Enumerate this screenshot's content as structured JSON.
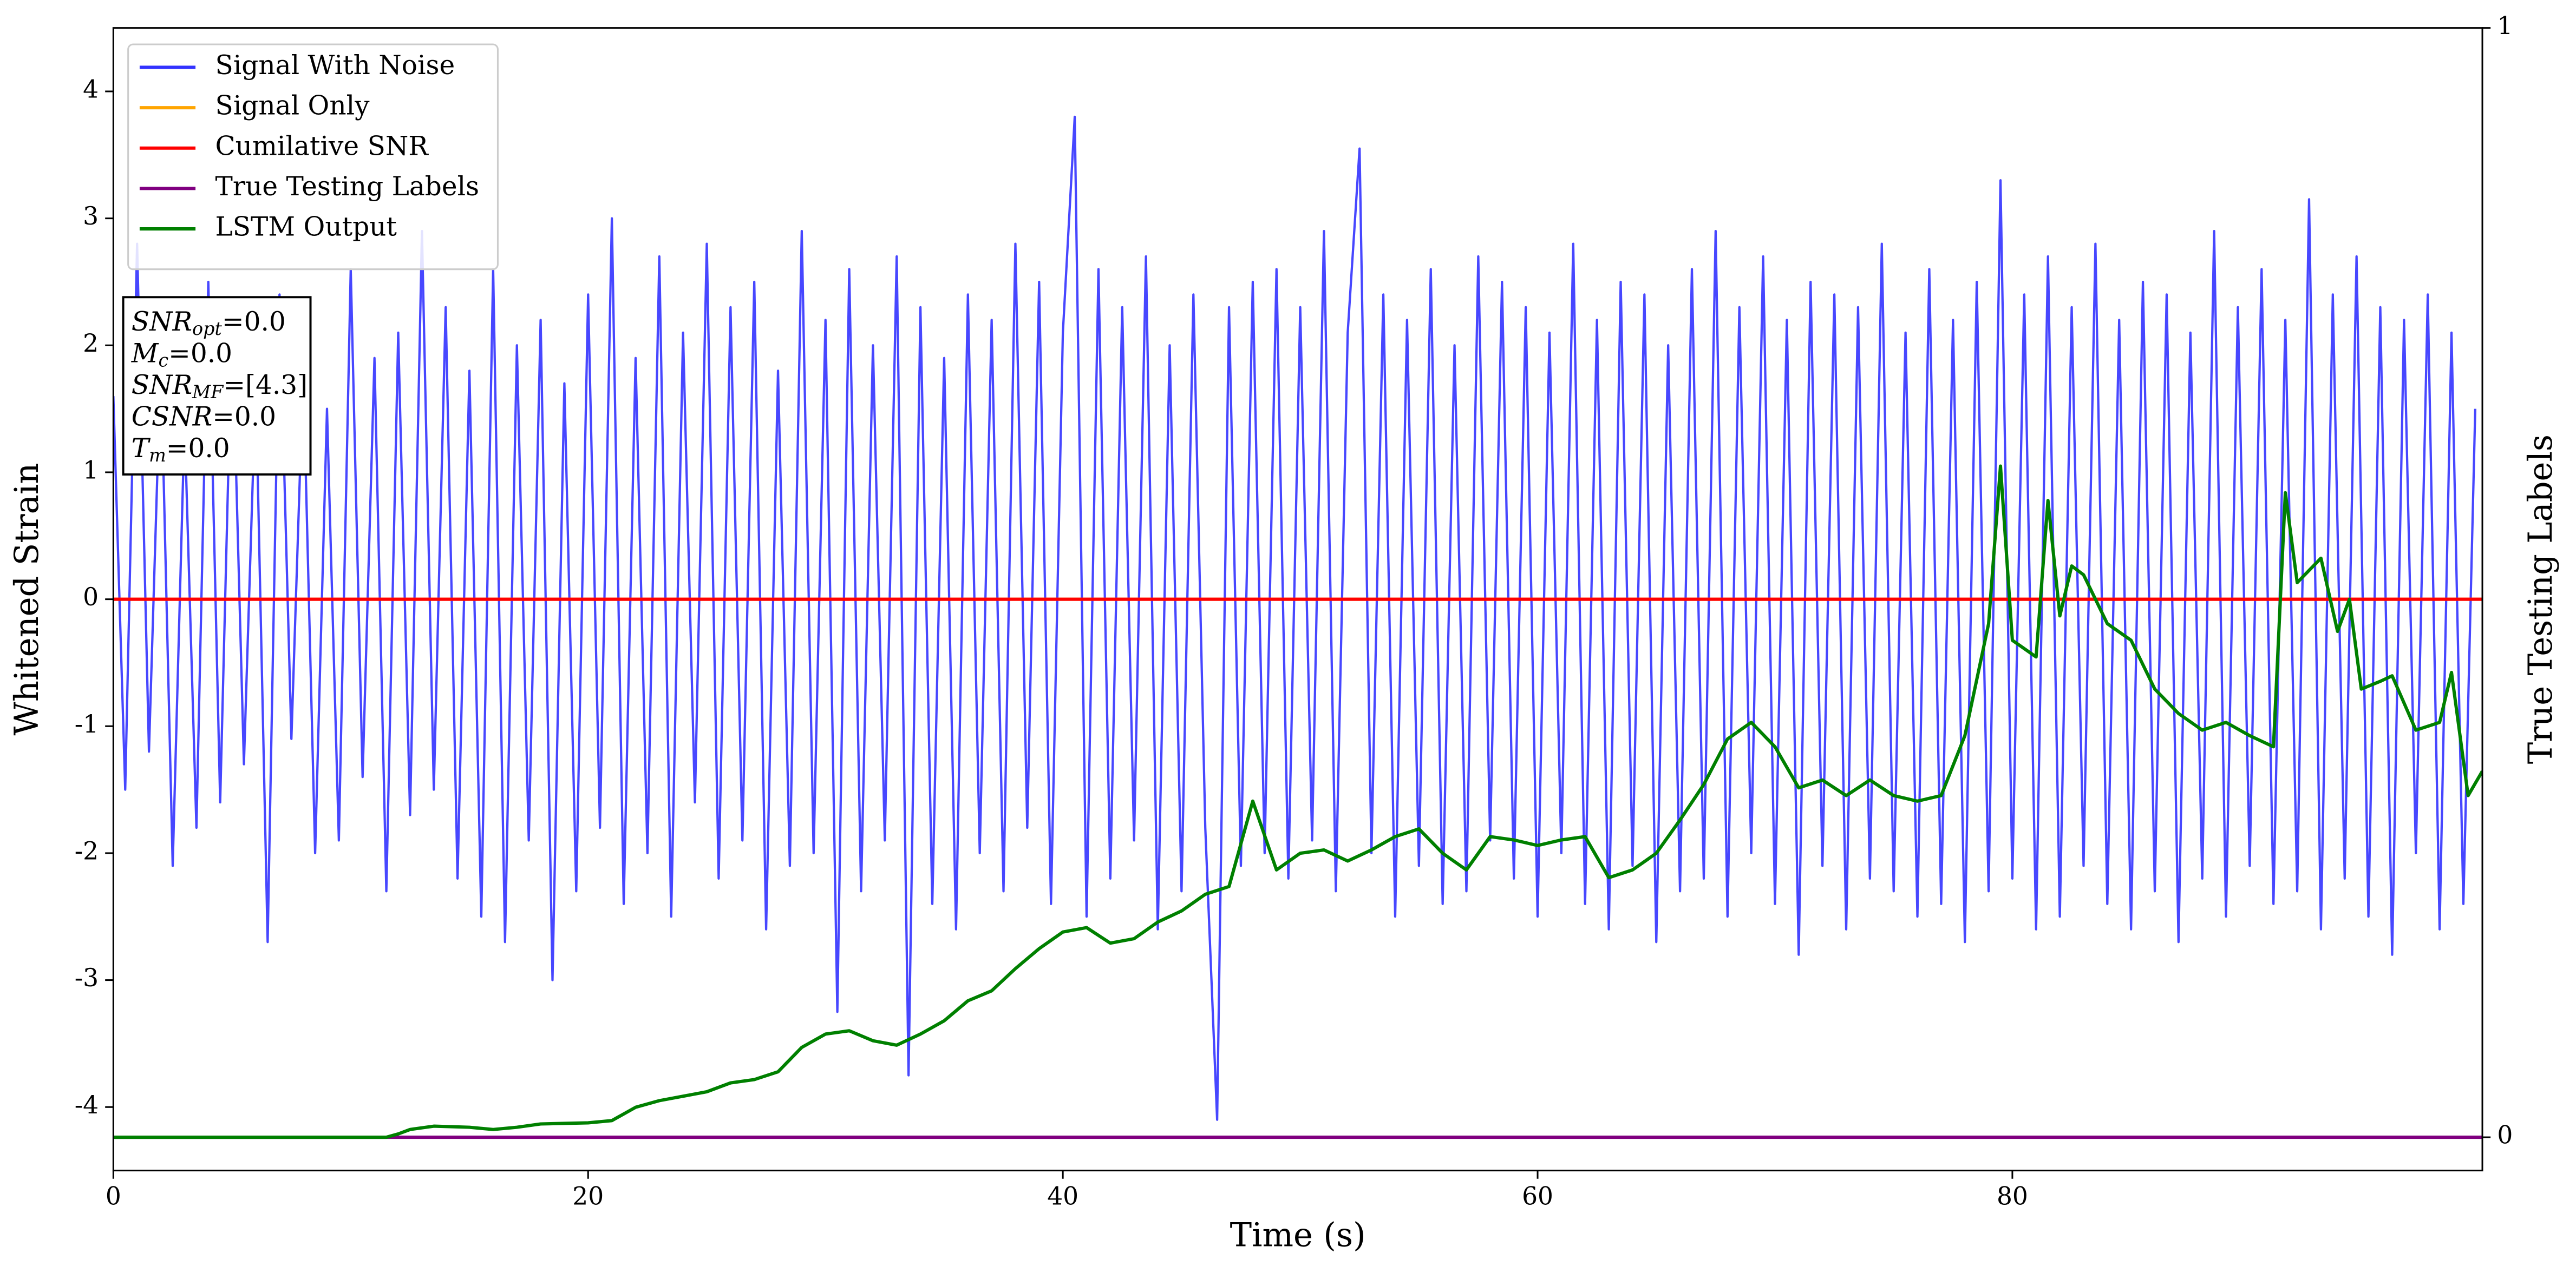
{
  "chart_data": {
    "type": "line",
    "xlabel": "Time (s)",
    "ylabel": "Whitened Strain",
    "y2label": "True Testing Labels",
    "xlim": [
      0,
      99.8
    ],
    "ylim": [
      -4.5,
      4.5
    ],
    "y2lim": [
      -0.03,
      1
    ],
    "xticks": [
      0,
      20,
      40,
      60,
      80
    ],
    "yticks": [
      -4,
      -3,
      -2,
      -1,
      0,
      1,
      2,
      3,
      4
    ],
    "y2ticks": [
      0,
      1
    ],
    "legend": "upper left",
    "annotation": [
      {
        "main": "SNR",
        "sub": "opt",
        "rest": "=0.0"
      },
      {
        "main": "M",
        "sub": "c",
        "rest": "=0.0"
      },
      {
        "main": "SNR",
        "sub": "MF",
        "rest": "=[4.3]"
      },
      {
        "main": "CSNR",
        "rest": "=0.0"
      },
      {
        "main": "T",
        "sub": "m",
        "rest": "=0.0"
      }
    ],
    "series": [
      {
        "name": "Signal With Noise",
        "color": "#3333ff",
        "x": [
          0,
          0.5,
          1,
          1.5,
          2,
          2.5,
          3,
          3.5,
          4,
          4.5,
          5,
          5.5,
          6,
          6.5,
          7,
          7.5,
          8,
          8.5,
          9,
          9.5,
          10,
          10.5,
          11,
          11.5,
          12,
          12.5,
          13,
          13.5,
          14,
          14.5,
          15,
          15.5,
          16,
          16.5,
          17,
          17.5,
          18,
          18.5,
          19,
          19.5,
          20,
          20.5,
          21,
          21.5,
          22,
          22.5,
          23,
          23.5,
          24,
          24.5,
          25,
          25.5,
          26,
          26.5,
          27,
          27.5,
          28,
          28.5,
          29,
          29.5,
          30,
          30.5,
          31,
          31.5,
          32,
          32.5,
          33,
          33.5,
          34,
          34.5,
          35,
          35.5,
          36,
          36.5,
          37,
          37.5,
          38,
          38.5,
          39,
          39.5,
          40,
          40.5,
          41,
          41.5,
          42,
          42.5,
          43,
          43.5,
          44,
          44.5,
          45,
          45.5,
          46,
          46.5,
          47,
          47.5,
          48,
          48.5,
          49,
          49.5,
          50,
          50.5,
          51,
          51.5,
          52,
          52.5,
          53,
          53.5,
          54,
          54.5,
          55,
          55.5,
          56,
          56.5,
          57,
          57.5,
          58,
          58.5,
          59,
          59.5,
          60,
          60.5,
          61,
          61.5,
          62,
          62.5,
          63,
          63.5,
          64,
          64.5,
          65,
          65.5,
          66,
          66.5,
          67,
          67.5,
          68,
          68.5,
          69,
          69.5,
          70,
          70.5,
          71,
          71.5,
          72,
          72.5,
          73,
          73.5,
          74,
          74.5,
          75,
          75.5,
          76,
          76.5,
          77,
          77.5,
          78,
          78.5,
          79,
          79.5,
          80,
          80.5,
          81,
          81.5,
          82,
          82.5,
          83,
          83.5,
          84,
          84.5,
          85,
          85.5,
          86,
          86.5,
          87,
          87.5,
          88,
          88.5,
          89,
          89.5,
          90,
          90.5,
          91,
          91.5,
          92,
          92.5,
          93,
          93.5,
          94,
          94.5,
          95,
          95.5,
          96,
          96.5,
          97,
          97.5,
          98,
          98.5,
          99,
          99.5
        ],
        "values": [
          1.6,
          -1.5,
          2.8,
          -1.2,
          1.9,
          -2.1,
          1.4,
          -1.8,
          2.5,
          -1.6,
          2.2,
          -1.3,
          1.7,
          -2.7,
          2.4,
          -1.1,
          1.8,
          -2.0,
          1.5,
          -1.9,
          2.6,
          -1.4,
          1.9,
          -2.3,
          2.1,
          -1.7,
          2.9,
          -1.5,
          2.3,
          -2.2,
          1.8,
          -2.5,
          2.6,
          -2.7,
          2.0,
          -1.9,
          2.2,
          -3.0,
          1.7,
          -2.3,
          2.4,
          -1.8,
          3.0,
          -2.4,
          1.9,
          -2.0,
          2.7,
          -2.5,
          2.1,
          -1.6,
          2.8,
          -2.2,
          2.3,
          -1.9,
          2.5,
          -2.6,
          1.8,
          -2.1,
          2.9,
          -2.0,
          2.2,
          -3.25,
          2.6,
          -2.3,
          2.0,
          -1.9,
          2.7,
          -3.75,
          2.3,
          -2.4,
          1.9,
          -2.6,
          2.4,
          -2.0,
          2.2,
          -2.3,
          2.8,
          -1.8,
          2.5,
          -2.4,
          2.1,
          3.8,
          -2.5,
          2.6,
          -2.2,
          2.3,
          -1.9,
          2.7,
          -2.6,
          2.0,
          -2.3,
          2.4,
          -1.8,
          -4.1,
          2.3,
          -2.1,
          2.5,
          -2.0,
          2.6,
          -2.2,
          2.3,
          -1.9,
          2.9,
          -2.3,
          2.1,
          3.55,
          -2.0,
          2.4,
          -2.5,
          2.2,
          -2.1,
          2.6,
          -2.4,
          2.0,
          -2.3,
          2.7,
          -1.9,
          2.5,
          -2.2,
          2.3,
          -2.5,
          2.1,
          -2.0,
          2.8,
          -2.4,
          2.2,
          -2.6,
          2.5,
          -2.1,
          2.4,
          -2.7,
          2.0,
          -2.3,
          2.6,
          -2.2,
          2.9,
          -2.5,
          2.3,
          -2.0,
          2.7,
          -2.4,
          2.2,
          -2.8,
          2.5,
          -2.1,
          2.4,
          -2.6,
          2.3,
          -2.2,
          2.8,
          -2.3,
          2.1,
          -2.5,
          2.6,
          -2.4,
          2.2,
          -2.7,
          2.5,
          -2.3,
          3.3,
          -2.2,
          2.4,
          -2.6,
          2.7,
          -2.5,
          2.3,
          -2.1,
          2.8,
          -2.4,
          2.2,
          -2.6,
          2.5,
          -2.3,
          2.4,
          -2.7,
          2.1,
          -2.2,
          2.9,
          -2.5,
          2.3,
          -2.1,
          2.6,
          -2.4,
          2.2,
          -2.3,
          3.15,
          -2.6,
          2.4,
          -2.2,
          2.7,
          -2.5,
          2.3,
          -2.8,
          2.2,
          -2.0,
          2.4,
          -2.6,
          2.1,
          -2.4,
          1.5
        ]
      },
      {
        "name": "Signal Only",
        "color": "#ffa500",
        "x": [
          0,
          99.8
        ],
        "values": [
          0,
          0
        ]
      },
      {
        "name": "Cumilative SNR",
        "color": "#ff0000",
        "x": [
          0,
          99.8
        ],
        "values": [
          0,
          0
        ]
      },
      {
        "name": "True Testing Labels",
        "color": "#800080",
        "axis": "y2",
        "x": [
          0,
          99.8
        ],
        "values": [
          0,
          0
        ]
      },
      {
        "name": "LSTM Output",
        "color": "#008000",
        "axis": "y2",
        "x": [
          0,
          11.5,
          12,
          12.5,
          13.5,
          15,
          16,
          17,
          18,
          20,
          21,
          22,
          23,
          24,
          25,
          26,
          27,
          28,
          29,
          30,
          31,
          32,
          33,
          34,
          35,
          36,
          37,
          38,
          39,
          40,
          41,
          42,
          43,
          44,
          45,
          46,
          47,
          48,
          49,
          50,
          51,
          52,
          53,
          54,
          55,
          56,
          57,
          58,
          59,
          60,
          61,
          62,
          63,
          64,
          65,
          66,
          67,
          68,
          69,
          70,
          71,
          72,
          73,
          74,
          75,
          76,
          77,
          78,
          79,
          79.5,
          80,
          81,
          81.5,
          82,
          82.5,
          83,
          84,
          85,
          86,
          87,
          88,
          89,
          90,
          91,
          91.5,
          92,
          93,
          93.7,
          94.2,
          94.7,
          95.5,
          96,
          97,
          98,
          98.5,
          99.2,
          99.8
        ],
        "values": [
          0,
          0,
          0.003,
          0.007,
          0.01,
          0.009,
          0.007,
          0.009,
          0.012,
          0.013,
          0.015,
          0.027,
          0.033,
          0.037,
          0.041,
          0.049,
          0.052,
          0.059,
          0.081,
          0.093,
          0.096,
          0.087,
          0.083,
          0.093,
          0.105,
          0.123,
          0.132,
          0.152,
          0.17,
          0.185,
          0.189,
          0.175,
          0.179,
          0.194,
          0.204,
          0.219,
          0.226,
          0.303,
          0.241,
          0.256,
          0.259,
          0.249,
          0.259,
          0.271,
          0.278,
          0.256,
          0.241,
          0.271,
          0.268,
          0.263,
          0.268,
          0.271,
          0.234,
          0.241,
          0.256,
          0.286,
          0.318,
          0.359,
          0.374,
          0.352,
          0.315,
          0.322,
          0.308,
          0.322,
          0.308,
          0.303,
          0.308,
          0.362,
          0.463,
          0.605,
          0.448,
          0.433,
          0.574,
          0.47,
          0.515,
          0.507,
          0.463,
          0.448,
          0.404,
          0.382,
          0.367,
          0.374,
          0.362,
          0.352,
          0.581,
          0.5,
          0.522,
          0.456,
          0.485,
          0.404,
          0.411,
          0.416,
          0.367,
          0.374,
          0.419,
          0.308,
          0.33
        ]
      }
    ]
  }
}
